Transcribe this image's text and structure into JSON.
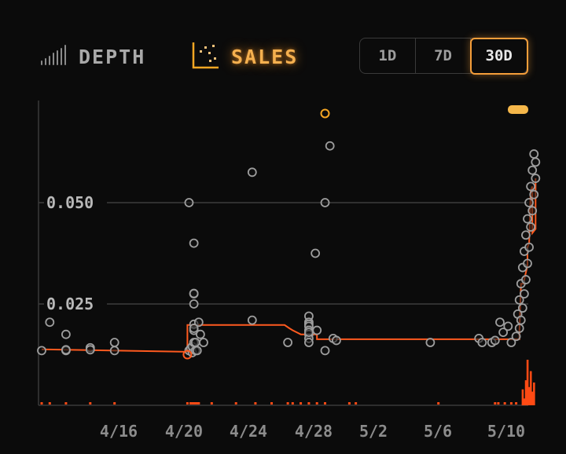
{
  "tabs": {
    "depth_label": "DEPTH",
    "sales_label": "SALES",
    "active": "SALES"
  },
  "time_range": {
    "options": [
      "1D",
      "7D",
      "30D"
    ],
    "selected": "30D"
  },
  "colors": {
    "accent": "#f5a623",
    "price_line": "#ff5a1f",
    "sale_dot": "#9e9e9e",
    "grid": "#3a3a3a",
    "background": "#0b0b0b"
  },
  "chart_data": {
    "type": "scatter",
    "ylim": [
      0,
      0.075
    ],
    "y_gridlines": [
      {
        "value": 0.05,
        "label": "0.050"
      },
      {
        "value": 0.025,
        "label": "0.025"
      }
    ],
    "x_ticks": [
      "4/16",
      "4/20",
      "4/24",
      "4/28",
      "5/2",
      "5/6",
      "5/10"
    ],
    "sales": [
      [
        0.0,
        0.0135
      ],
      [
        0.5,
        0.0205
      ],
      [
        1.5,
        0.0175
      ],
      [
        1.5,
        0.0135
      ],
      [
        1.5,
        0.0137
      ],
      [
        3.0,
        0.0142
      ],
      [
        3.0,
        0.0137
      ],
      [
        4.5,
        0.0155
      ],
      [
        4.5,
        0.0135
      ],
      [
        9.1,
        0.05
      ],
      [
        9.1,
        0.0135
      ],
      [
        9.2,
        0.014
      ],
      [
        9.3,
        0.013
      ],
      [
        9.3,
        0.0145
      ],
      [
        9.4,
        0.0155
      ],
      [
        9.4,
        0.0185
      ],
      [
        9.4,
        0.02
      ],
      [
        9.4,
        0.019
      ],
      [
        9.4,
        0.025
      ],
      [
        9.4,
        0.0275
      ],
      [
        9.4,
        0.0276
      ],
      [
        9.4,
        0.04
      ],
      [
        9.5,
        0.0135
      ],
      [
        9.5,
        0.0155
      ],
      [
        9.6,
        0.0135
      ],
      [
        9.7,
        0.0205
      ],
      [
        9.8,
        0.0175
      ],
      [
        10.0,
        0.0155
      ],
      [
        13.0,
        0.0575
      ],
      [
        13.0,
        0.021
      ],
      [
        15.2,
        0.0155
      ],
      [
        16.5,
        0.022
      ],
      [
        16.5,
        0.0205
      ],
      [
        16.5,
        0.02
      ],
      [
        16.5,
        0.0195
      ],
      [
        16.5,
        0.0185
      ],
      [
        16.5,
        0.0175
      ],
      [
        16.5,
        0.0165
      ],
      [
        16.5,
        0.0155
      ],
      [
        16.5,
        0.018
      ],
      [
        16.9,
        0.0375
      ],
      [
        17.0,
        0.0185
      ],
      [
        17.5,
        0.05
      ],
      [
        17.5,
        0.0135
      ],
      [
        17.8,
        0.064
      ],
      [
        18.0,
        0.0165
      ],
      [
        18.2,
        0.016
      ],
      [
        24.0,
        0.0155
      ],
      [
        27.0,
        0.0165
      ],
      [
        27.2,
        0.0155
      ],
      [
        27.8,
        0.0155
      ],
      [
        28.0,
        0.016
      ],
      [
        28.3,
        0.0205
      ],
      [
        28.5,
        0.018
      ],
      [
        28.8,
        0.0195
      ],
      [
        29.0,
        0.0155
      ],
      [
        29.3,
        0.017
      ],
      [
        29.4,
        0.0225
      ],
      [
        29.5,
        0.026
      ],
      [
        29.6,
        0.03
      ],
      [
        29.7,
        0.034
      ],
      [
        29.8,
        0.038
      ],
      [
        29.9,
        0.042
      ],
      [
        30.0,
        0.046
      ],
      [
        30.1,
        0.05
      ],
      [
        30.2,
        0.054
      ],
      [
        30.3,
        0.058
      ],
      [
        30.4,
        0.062
      ],
      [
        29.5,
        0.019
      ],
      [
        29.6,
        0.021
      ],
      [
        29.7,
        0.024
      ],
      [
        29.8,
        0.0275
      ],
      [
        29.9,
        0.031
      ],
      [
        30.0,
        0.035
      ],
      [
        30.1,
        0.039
      ],
      [
        30.2,
        0.044
      ],
      [
        30.3,
        0.048
      ],
      [
        30.4,
        0.052
      ],
      [
        30.5,
        0.056
      ],
      [
        30.5,
        0.06
      ]
    ],
    "highlighted_sales": [
      [
        17.5,
        0.072
      ],
      [
        9.0,
        0.0125
      ]
    ],
    "floor_price_line": [
      [
        0.0,
        0.0138
      ],
      [
        9.0,
        0.0132
      ],
      [
        9.0,
        0.0198
      ],
      [
        15.0,
        0.0198
      ],
      [
        15.3,
        0.019
      ],
      [
        15.5,
        0.0185
      ],
      [
        16.0,
        0.0175
      ],
      [
        17.0,
        0.0175
      ],
      [
        17.0,
        0.0163
      ],
      [
        29.5,
        0.0163
      ],
      [
        29.5,
        0.018
      ],
      [
        29.6,
        0.03
      ],
      [
        29.8,
        0.03
      ],
      [
        29.8,
        0.031
      ],
      [
        30.0,
        0.0345
      ],
      [
        30.0,
        0.039
      ],
      [
        30.1,
        0.04
      ],
      [
        30.2,
        0.053
      ],
      [
        30.3,
        0.054
      ],
      [
        30.3,
        0.0425
      ],
      [
        30.4,
        0.043
      ],
      [
        30.5,
        0.0435
      ],
      [
        30.5,
        0.056
      ]
    ],
    "volume_ticks": [
      0,
      0.5,
      1.5,
      3,
      4.5,
      9,
      9.2,
      9.3,
      9.4,
      9.5,
      9.6,
      9.7,
      10.5,
      12,
      13.2,
      14.2,
      15.2,
      15.5,
      16.0,
      16.5,
      17.0,
      17.5,
      19.0,
      19.4,
      24.5,
      28.0,
      28.2,
      28.6,
      29.0,
      29.3
    ],
    "volume_bars": [
      [
        29.7,
        0.35
      ],
      [
        29.8,
        0.15
      ],
      [
        29.9,
        0.55
      ],
      [
        30.0,
        1.0
      ],
      [
        30.1,
        0.4
      ],
      [
        30.2,
        0.75
      ],
      [
        30.3,
        0.3
      ],
      [
        30.4,
        0.5
      ]
    ]
  }
}
